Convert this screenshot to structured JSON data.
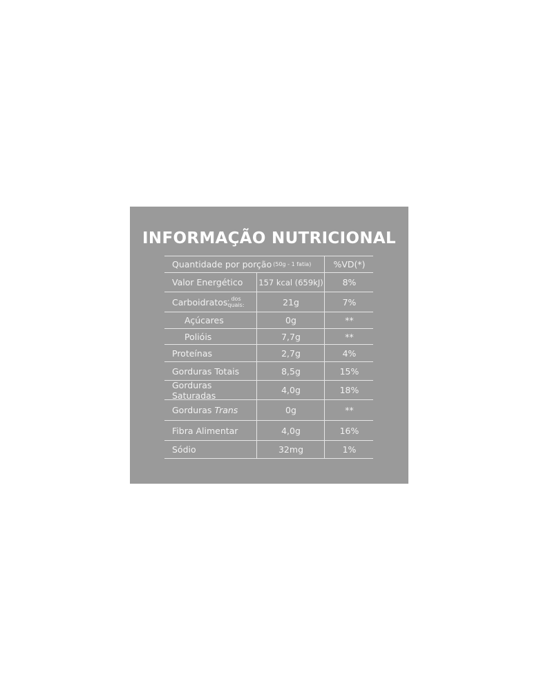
{
  "title": "INFORMAÇÃO NUTRICIONAL",
  "header": {
    "label": "Quantidade por porção",
    "serving": "(50g - 1 fatia)",
    "dv": "%VD(*)"
  },
  "rows": [
    {
      "name": "Valor Energético",
      "suffix": "",
      "amount": "157 kcal (659kJ)",
      "dv": "8%"
    },
    {
      "name": "Carboidratos",
      "suffix": ", dos quais:",
      "amount": "21g",
      "dv": "7%"
    },
    {
      "name": "Açúcares",
      "suffix": "",
      "amount": "0g",
      "dv": "**"
    },
    {
      "name": "Polióis",
      "suffix": "",
      "amount": "7,7g",
      "dv": "**"
    },
    {
      "name": "Proteínas",
      "suffix": "",
      "amount": "2,7g",
      "dv": "4%"
    },
    {
      "name": "Gorduras Totais",
      "suffix": "",
      "amount": "8,5g",
      "dv": "15%"
    },
    {
      "name": "Gorduras Saturadas",
      "suffix": "",
      "amount": "4,0g",
      "dv": "18%"
    },
    {
      "name": "Gorduras",
      "suffix": "Trans",
      "amount": "0g",
      "dv": "**"
    },
    {
      "name": "Fibra Alimentar",
      "suffix": "",
      "amount": "4,0g",
      "dv": "16%"
    },
    {
      "name": "Sódio",
      "suffix": "",
      "amount": "32mg",
      "dv": "1%"
    }
  ],
  "colors": {
    "panel": "#9a9a9a",
    "text": "#ffffff"
  }
}
